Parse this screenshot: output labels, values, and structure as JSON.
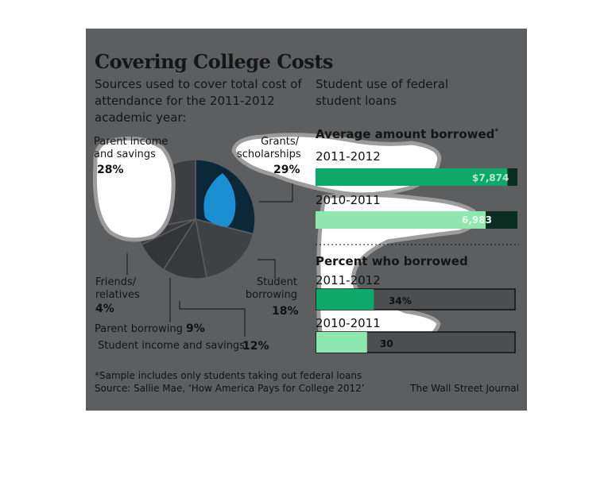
{
  "title": "Covering College Costs",
  "subtitle": "Sources used to cover total cost of attendance for the 2011-2012 academic year:",
  "right_heading": "Student use of federal student loans",
  "avg_heading": "Average amount borrowed",
  "avg_marker": "*",
  "pct_heading": "Percent who borrowed",
  "footnote": "*Sample includes only students taking out federal loans",
  "source": "Source: Sallie Mae, ‘How America Pays for College 2012’",
  "credit": "The Wall Street Journal",
  "colors": {
    "panel": "#5d5e60",
    "grants": "#0b2738",
    "highlight": "#1c8fd3",
    "green_dark": "#0fa86b",
    "green_light": "#8fe6ae",
    "loan_track": "#0a2d22"
  },
  "chart_data": [
    {
      "type": "pie",
      "title": "Sources used to cover total cost of attendance for the 2011-2012 academic year:",
      "slices": [
        {
          "label": "Grants/ scholarships",
          "value": 29,
          "display": "29%"
        },
        {
          "label": "Student borrowing",
          "value": 18,
          "display": "18%"
        },
        {
          "label": "Student income and savings",
          "value": 12,
          "display": "12%"
        },
        {
          "label": "Parent borrowing",
          "value": 9,
          "display": "9%"
        },
        {
          "label": "Friends/ relatives",
          "value": 4,
          "display": "4%"
        },
        {
          "label": "Parent income and savings",
          "value": 28,
          "display": "28%"
        }
      ]
    },
    {
      "type": "bar",
      "title": "Average amount borrowed",
      "categories": [
        "2011-2012",
        "2010-2011"
      ],
      "values": [
        7874,
        6983
      ],
      "labels": [
        "$7,874",
        "6,983"
      ]
    },
    {
      "type": "bar",
      "title": "Percent who borrowed",
      "categories": [
        "2011-2012",
        "2010-2011"
      ],
      "values": [
        34,
        30
      ],
      "labels": [
        "34%",
        "30"
      ],
      "xlim": [
        0,
        100
      ]
    }
  ]
}
